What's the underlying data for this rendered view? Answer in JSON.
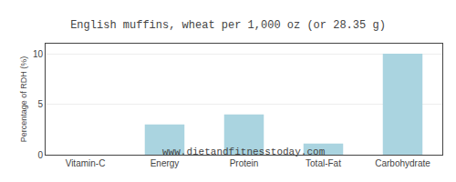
{
  "chart_data": {
    "type": "bar",
    "title": "English muffins, wheat per 1,000 oz (or 28.35 g)",
    "subtitle": "www.dietandfitnesstoday.com",
    "ylabel": "Percentage of RDH (%)",
    "categories": [
      "Vitamin-C",
      "Energy",
      "Protein",
      "Total-Fat",
      "Carbohydrate"
    ],
    "values": [
      0,
      3.0,
      4.0,
      1.1,
      10.0
    ],
    "color": "#aad4e0",
    "ylim": [
      0,
      11
    ],
    "yticks": [
      0,
      5,
      10
    ],
    "grid": true
  }
}
